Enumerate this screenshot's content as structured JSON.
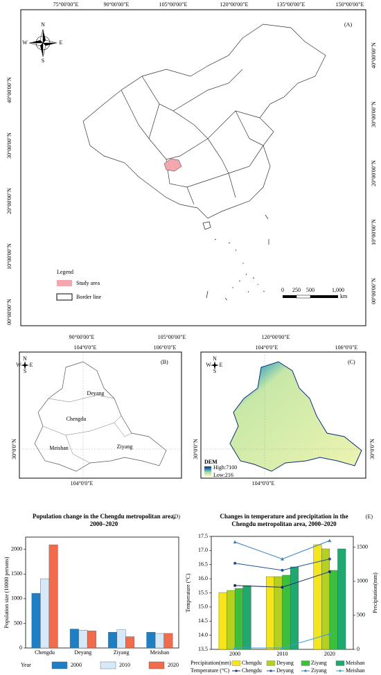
{
  "maps": {
    "A": {
      "label": "(A)",
      "top_labels": [
        "75°00'00\"E",
        "90°00'00\"E",
        "105°00'00\"E",
        "120°00'00\"E",
        "135°00'00\"E",
        "150°00'00\"E"
      ],
      "bottom_labels": [
        "90°00'00\"E",
        "105°00'00\"E",
        "120°00'00\"E"
      ],
      "left_labels": [
        "40°00'00\"N",
        "30°00'00\"N",
        "20°00'00\"N",
        "10°00'00\"N",
        "00°00'00\"N"
      ],
      "right_labels": [
        "40°00'00\"N",
        "30°00'00\"N",
        "20°00'00\"N",
        "10°00'00\"N",
        "00°00'00\"N"
      ],
      "compass": [
        "N",
        "S",
        "W",
        "E"
      ],
      "legend_title": "Legend",
      "legend_items": [
        "Study area",
        "Border line"
      ],
      "scale_labels": [
        "0",
        "250",
        "500",
        "1,000"
      ],
      "scale_unit": "km"
    },
    "B": {
      "label": "(B)",
      "top_labels": [
        "104°0'0\"E",
        "106°0'0\"E"
      ],
      "bottom_labels": [
        "104°0'0\"E"
      ],
      "side_labels": [
        "30°0'0\"N"
      ],
      "compass": [
        "N",
        "S",
        "W",
        "E"
      ],
      "regions": [
        "Deyang",
        "Chengdu",
        "Meishan",
        "Ziyang"
      ]
    },
    "C": {
      "label": "(C)",
      "top_labels": [
        "104°0'0\"E",
        "106°0'0\"E"
      ],
      "bottom_labels": [
        "104°0'0\"E"
      ],
      "side_labels": [
        "30°0'0\"N",
        "30°0'0\"N"
      ],
      "compass": [
        "N",
        "S",
        "W",
        "E"
      ],
      "dem_title": "DEM",
      "dem_high": "High:7100",
      "dem_low": "Low:216"
    }
  },
  "chart_data": [
    {
      "type": "bar",
      "label": "(D)",
      "title": "Population change in the Chengdu metropolitan area, 2000–2020",
      "y_label": "Population size (10000 persons)",
      "legend_title": "Year",
      "categories": [
        "Chengdu",
        "Deyang",
        "Ziyang",
        "Meishan"
      ],
      "series": [
        {
          "name": "2000",
          "color": "#1f7fc4",
          "values": [
            1110,
            385,
            320,
            320
          ]
        },
        {
          "name": "2010",
          "color": "#d6e9f8",
          "values": [
            1405,
            362,
            370,
            295
          ]
        },
        {
          "name": "2020",
          "color": "#f26b4b",
          "values": [
            2094,
            346,
            230,
            296
          ]
        }
      ],
      "ylim": [
        0,
        2250
      ],
      "yticks": [
        0,
        500,
        1000,
        1500,
        2000
      ]
    },
    {
      "type": "bar",
      "label": "(E)",
      "title": "Changes in temperature and precipitation in the Chengdu metropolitan area, 2000–2020",
      "y_label": "Temperature (°C)",
      "y2_label": "Precipitation(mm)",
      "legend_title": "Precipitation(mm)",
      "line_legend_title": "Temperature (°C)",
      "categories": [
        "2000",
        "2010",
        "2020"
      ],
      "series": [
        {
          "name": "Chengdu",
          "color": "#f5e51c",
          "axis": "y2",
          "values": [
            835,
            1069,
            1538
          ]
        },
        {
          "name": "Deyang",
          "color": "#b4d020",
          "axis": "y2",
          "values": [
            866,
            1069,
            1477
          ]
        },
        {
          "name": "Ziyang",
          "color": "#3cbf3c",
          "axis": "y2",
          "values": [
            896,
            1090,
            1161
          ]
        },
        {
          "name": "Meishan",
          "color": "#1fa870",
          "axis": "y2",
          "values": [
            937,
            1212,
            1477
          ]
        }
      ],
      "line_series": [
        {
          "name": "Chengdu",
          "color": "#1a2f6b",
          "marker": "circle",
          "values": [
            15.76,
            15.7,
            16.25
          ]
        },
        {
          "name": "Deyang",
          "color": "#1f4fa0",
          "marker": "circle",
          "values": [
            16.55,
            16.3,
            16.7
          ]
        },
        {
          "name": "Ziyang",
          "color": "#2f7fc8",
          "marker": "triangle",
          "values": [
            17.3,
            16.7,
            17.35
          ]
        },
        {
          "name": "Meishan",
          "color": "#3aa0d8",
          "marker": "triangle",
          "values": [
            13.55,
            13.55,
            14.05
          ]
        }
      ],
      "ylim": [
        13.5,
        17.5
      ],
      "yticks": [
        13.5,
        {
          "value": 14,
          "label": "14.0"
        },
        14.5,
        {
          "value": 15,
          "label": "15.0"
        },
        15.5,
        {
          "value": 16,
          "label": "16.0"
        },
        16.5,
        {
          "value": 17,
          "label": "17.0"
        },
        17.5
      ],
      "y2lim": [
        0,
        1660
      ],
      "y2ticks": [
        0,
        500,
        1000,
        1500
      ]
    }
  ]
}
